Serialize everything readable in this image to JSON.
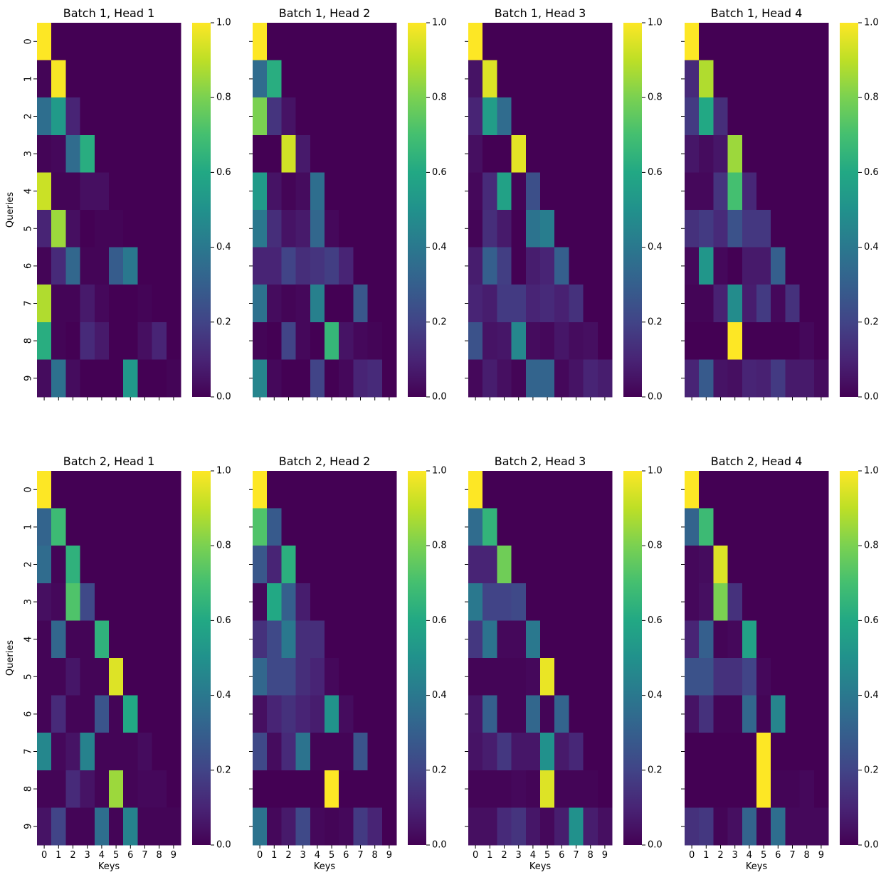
{
  "chart_data": [
    {
      "type": "heatmap",
      "title": "Batch 1, Head 1",
      "xlabel": "",
      "ylabel": "Queries",
      "x_categories": [
        "0",
        "1",
        "2",
        "3",
        "4",
        "5",
        "6",
        "7",
        "8",
        "9"
      ],
      "y_categories": [
        "0",
        "1",
        "2",
        "3",
        "4",
        "5",
        "6",
        "7",
        "8",
        "9"
      ],
      "colormap": "viridis",
      "vmin": 0,
      "vmax": 1,
      "colorbar_ticks": [
        "0.0",
        "0.2",
        "0.4",
        "0.6",
        "0.8",
        "1.0"
      ],
      "values": [
        [
          1.0,
          0,
          0,
          0,
          0,
          0,
          0,
          0,
          0,
          0
        ],
        [
          0.01,
          0.99,
          0,
          0,
          0,
          0,
          0,
          0,
          0,
          0
        ],
        [
          0.36,
          0.54,
          0.1,
          0,
          0,
          0,
          0,
          0,
          0,
          0
        ],
        [
          0.01,
          0.02,
          0.35,
          0.62,
          0,
          0,
          0,
          0,
          0,
          0
        ],
        [
          0.92,
          0.01,
          0.01,
          0.04,
          0.04,
          0,
          0,
          0,
          0,
          0
        ],
        [
          0.1,
          0.85,
          0.04,
          0,
          0.01,
          0.01,
          0,
          0,
          0,
          0
        ],
        [
          0.01,
          0.12,
          0.33,
          0.01,
          0.01,
          0.29,
          0.4,
          0,
          0,
          0
        ],
        [
          0.88,
          0.01,
          0.01,
          0.07,
          0.02,
          0,
          0,
          0.01,
          0,
          0
        ],
        [
          0.62,
          0.01,
          0,
          0.12,
          0.07,
          0,
          0,
          0.04,
          0.1,
          0
        ],
        [
          0.03,
          0.37,
          0.03,
          0,
          0,
          0,
          0.53,
          0,
          0,
          0.01
        ]
      ]
    },
    {
      "type": "heatmap",
      "title": "Batch 1, Head 2",
      "xlabel": "",
      "ylabel": "",
      "x_categories": [
        "0",
        "1",
        "2",
        "3",
        "4",
        "5",
        "6",
        "7",
        "8",
        "9"
      ],
      "y_categories": [
        "0",
        "1",
        "2",
        "3",
        "4",
        "5",
        "6",
        "7",
        "8",
        "9"
      ],
      "colormap": "viridis",
      "vmin": 0,
      "vmax": 1,
      "colorbar_ticks": [
        "0.0",
        "0.2",
        "0.4",
        "0.6",
        "0.8",
        "1.0"
      ],
      "values": [
        [
          1.0,
          0,
          0,
          0,
          0,
          0,
          0,
          0,
          0,
          0
        ],
        [
          0.35,
          0.62,
          0,
          0,
          0,
          0,
          0,
          0,
          0,
          0
        ],
        [
          0.8,
          0.15,
          0.05,
          0,
          0,
          0,
          0,
          0,
          0,
          0
        ],
        [
          0,
          0,
          0.93,
          0.07,
          0,
          0,
          0,
          0,
          0,
          0
        ],
        [
          0.54,
          0.05,
          0.01,
          0.03,
          0.36,
          0,
          0,
          0,
          0,
          0
        ],
        [
          0.4,
          0.13,
          0.05,
          0.07,
          0.33,
          0.02,
          0,
          0,
          0,
          0
        ],
        [
          0.1,
          0.1,
          0.2,
          0.13,
          0.15,
          0.18,
          0.1,
          0,
          0,
          0
        ],
        [
          0.37,
          0.03,
          0.01,
          0.02,
          0.43,
          0,
          0,
          0.27,
          0,
          0
        ],
        [
          0.01,
          0,
          0.2,
          0.02,
          0,
          0.66,
          0.05,
          0.02,
          0.01,
          0
        ],
        [
          0.45,
          0.02,
          0,
          0,
          0.2,
          0,
          0.02,
          0.1,
          0.12,
          0
        ]
      ]
    },
    {
      "type": "heatmap",
      "title": "Batch 1, Head 3",
      "xlabel": "",
      "ylabel": "",
      "x_categories": [
        "0",
        "1",
        "2",
        "3",
        "4",
        "5",
        "6",
        "7",
        "8",
        "9"
      ],
      "y_categories": [
        "0",
        "1",
        "2",
        "3",
        "4",
        "5",
        "6",
        "7",
        "8",
        "9"
      ],
      "colormap": "viridis",
      "vmin": 0,
      "vmax": 1,
      "colorbar_ticks": [
        "0.0",
        "0.2",
        "0.4",
        "0.6",
        "0.8",
        "1.0"
      ],
      "values": [
        [
          1.0,
          0,
          0,
          0,
          0,
          0,
          0,
          0,
          0,
          0
        ],
        [
          0.05,
          0.95,
          0,
          0,
          0,
          0,
          0,
          0,
          0,
          0
        ],
        [
          0.1,
          0.55,
          0.35,
          0,
          0,
          0,
          0,
          0,
          0,
          0
        ],
        [
          0.04,
          0,
          0,
          0.96,
          0,
          0,
          0,
          0,
          0,
          0
        ],
        [
          0.02,
          0.12,
          0.57,
          0.01,
          0.24,
          0,
          0,
          0,
          0,
          0
        ],
        [
          0.01,
          0.13,
          0.07,
          0,
          0.38,
          0.42,
          0,
          0,
          0,
          0
        ],
        [
          0.08,
          0.3,
          0.18,
          0,
          0.08,
          0.1,
          0.3,
          0,
          0,
          0
        ],
        [
          0.1,
          0.08,
          0.17,
          0.17,
          0.1,
          0.12,
          0.09,
          0.14,
          0,
          0
        ],
        [
          0.25,
          0.05,
          0.06,
          0.46,
          0.03,
          0.02,
          0.06,
          0.03,
          0.04,
          0
        ],
        [
          0.02,
          0.08,
          0.04,
          0.01,
          0.32,
          0.32,
          0.02,
          0.05,
          0.1,
          0.08
        ]
      ]
    },
    {
      "type": "heatmap",
      "title": "Batch 1, Head 4",
      "xlabel": "",
      "ylabel": "",
      "x_categories": [
        "0",
        "1",
        "2",
        "3",
        "4",
        "5",
        "6",
        "7",
        "8",
        "9"
      ],
      "y_categories": [
        "0",
        "1",
        "2",
        "3",
        "4",
        "5",
        "6",
        "7",
        "8",
        "9"
      ],
      "colormap": "viridis",
      "vmin": 0,
      "vmax": 1,
      "colorbar_ticks": [
        "0.0",
        "0.2",
        "0.4",
        "0.6",
        "0.8",
        "1.0"
      ],
      "values": [
        [
          1.0,
          0,
          0,
          0,
          0,
          0,
          0,
          0,
          0,
          0
        ],
        [
          0.12,
          0.88,
          0,
          0,
          0,
          0,
          0,
          0,
          0,
          0
        ],
        [
          0.17,
          0.6,
          0.13,
          0,
          0,
          0,
          0,
          0,
          0,
          0
        ],
        [
          0.06,
          0.03,
          0.06,
          0.85,
          0,
          0,
          0,
          0,
          0,
          0
        ],
        [
          0.02,
          0.02,
          0.15,
          0.7,
          0.11,
          0,
          0,
          0,
          0,
          0
        ],
        [
          0.14,
          0.17,
          0.12,
          0.25,
          0.16,
          0.16,
          0,
          0,
          0,
          0
        ],
        [
          0.02,
          0.52,
          0.02,
          0,
          0.07,
          0.07,
          0.3,
          0,
          0,
          0
        ],
        [
          0.01,
          0.01,
          0.09,
          0.48,
          0.08,
          0.17,
          0.02,
          0.14,
          0,
          0
        ],
        [
          0,
          0,
          0,
          1.0,
          0,
          0,
          0,
          0,
          0.02,
          0
        ],
        [
          0.1,
          0.28,
          0.05,
          0.04,
          0.1,
          0.09,
          0.17,
          0.07,
          0.07,
          0.03
        ]
      ]
    },
    {
      "type": "heatmap",
      "title": "Batch 2, Head 1",
      "xlabel": "Keys",
      "ylabel": "Queries",
      "x_categories": [
        "0",
        "1",
        "2",
        "3",
        "4",
        "5",
        "6",
        "7",
        "8",
        "9"
      ],
      "y_categories": [
        "0",
        "1",
        "2",
        "3",
        "4",
        "5",
        "6",
        "7",
        "8",
        "9"
      ],
      "colormap": "viridis",
      "vmin": 0,
      "vmax": 1,
      "colorbar_ticks": [
        "0.0",
        "0.2",
        "0.4",
        "0.6",
        "0.8",
        "1.0"
      ],
      "values": [
        [
          1.0,
          0,
          0,
          0,
          0,
          0,
          0,
          0,
          0,
          0
        ],
        [
          0.32,
          0.68,
          0,
          0,
          0,
          0,
          0,
          0,
          0,
          0
        ],
        [
          0.35,
          0.01,
          0.64,
          0,
          0,
          0,
          0,
          0,
          0,
          0
        ],
        [
          0.04,
          0.02,
          0.72,
          0.22,
          0,
          0,
          0,
          0,
          0,
          0
        ],
        [
          0.01,
          0.33,
          0.01,
          0.01,
          0.64,
          0,
          0,
          0,
          0,
          0
        ],
        [
          0.01,
          0.01,
          0.06,
          0.01,
          0.01,
          0.95,
          0,
          0,
          0,
          0
        ],
        [
          0.01,
          0.12,
          0.01,
          0.01,
          0.26,
          0.01,
          0.6,
          0,
          0,
          0
        ],
        [
          0.46,
          0.02,
          0.05,
          0.44,
          0.01,
          0.01,
          0.01,
          0.03,
          0,
          0
        ],
        [
          0.01,
          0.01,
          0.12,
          0.05,
          0.01,
          0.85,
          0.01,
          0.02,
          0.02,
          0
        ],
        [
          0.05,
          0.2,
          0.01,
          0.01,
          0.36,
          0.01,
          0.44,
          0.01,
          0.01,
          0.01
        ]
      ]
    },
    {
      "type": "heatmap",
      "title": "Batch 2, Head 2",
      "xlabel": "Keys",
      "ylabel": "",
      "x_categories": [
        "0",
        "1",
        "2",
        "3",
        "4",
        "5",
        "6",
        "7",
        "8",
        "9"
      ],
      "y_categories": [
        "0",
        "1",
        "2",
        "3",
        "4",
        "5",
        "6",
        "7",
        "8",
        "9"
      ],
      "colormap": "viridis",
      "vmin": 0,
      "vmax": 1,
      "colorbar_ticks": [
        "0.0",
        "0.2",
        "0.4",
        "0.6",
        "0.8",
        "1.0"
      ],
      "values": [
        [
          1.0,
          0,
          0,
          0,
          0,
          0,
          0,
          0,
          0,
          0
        ],
        [
          0.72,
          0.28,
          0,
          0,
          0,
          0,
          0,
          0,
          0,
          0
        ],
        [
          0.27,
          0.1,
          0.63,
          0,
          0,
          0,
          0,
          0,
          0,
          0
        ],
        [
          0.02,
          0.6,
          0.3,
          0.08,
          0,
          0,
          0,
          0,
          0,
          0
        ],
        [
          0.14,
          0.22,
          0.4,
          0.13,
          0.13,
          0,
          0,
          0,
          0,
          0
        ],
        [
          0.33,
          0.22,
          0.22,
          0.13,
          0.1,
          0.02,
          0,
          0,
          0,
          0
        ],
        [
          0.04,
          0.1,
          0.14,
          0.1,
          0.08,
          0.51,
          0.03,
          0,
          0,
          0
        ],
        [
          0.22,
          0.03,
          0.12,
          0.38,
          0.01,
          0.01,
          0.01,
          0.26,
          0,
          0
        ],
        [
          0,
          0,
          0,
          0,
          0,
          1.0,
          0,
          0,
          0,
          0
        ],
        [
          0.38,
          0.02,
          0.07,
          0.22,
          0.02,
          0.01,
          0.02,
          0.17,
          0.1,
          0
        ]
      ]
    },
    {
      "type": "heatmap",
      "title": "Batch 2, Head 3",
      "xlabel": "Keys",
      "ylabel": "",
      "x_categories": [
        "0",
        "1",
        "2",
        "3",
        "4",
        "5",
        "6",
        "7",
        "8",
        "9"
      ],
      "y_categories": [
        "0",
        "1",
        "2",
        "3",
        "4",
        "5",
        "6",
        "7",
        "8",
        "9"
      ],
      "colormap": "viridis",
      "vmin": 0,
      "vmax": 1,
      "colorbar_ticks": [
        "0.0",
        "0.2",
        "0.4",
        "0.6",
        "0.8",
        "1.0"
      ],
      "values": [
        [
          1.0,
          0,
          0,
          0,
          0,
          0,
          0,
          0,
          0,
          0
        ],
        [
          0.35,
          0.65,
          0,
          0,
          0,
          0,
          0,
          0,
          0,
          0
        ],
        [
          0.1,
          0.1,
          0.78,
          0,
          0,
          0,
          0,
          0,
          0,
          0
        ],
        [
          0.4,
          0.2,
          0.2,
          0.22,
          0,
          0,
          0,
          0,
          0,
          0
        ],
        [
          0.16,
          0.38,
          0.02,
          0.02,
          0.4,
          0,
          0,
          0,
          0,
          0
        ],
        [
          0.01,
          0.01,
          0.01,
          0.01,
          0.02,
          0.97,
          0,
          0,
          0,
          0
        ],
        [
          0.06,
          0.3,
          0.01,
          0.01,
          0.33,
          0.01,
          0.32,
          0,
          0,
          0
        ],
        [
          0.05,
          0.08,
          0.16,
          0.06,
          0.06,
          0.5,
          0.07,
          0.11,
          0,
          0
        ],
        [
          0.01,
          0.01,
          0.01,
          0.02,
          0.01,
          0.95,
          0.01,
          0.01,
          0.01,
          0
        ],
        [
          0.04,
          0.04,
          0.12,
          0.15,
          0.06,
          0.02,
          0.08,
          0.5,
          0.08,
          0.04
        ]
      ]
    },
    {
      "type": "heatmap",
      "title": "Batch 2, Head 4",
      "xlabel": "Keys",
      "ylabel": "",
      "x_categories": [
        "0",
        "1",
        "2",
        "3",
        "4",
        "5",
        "6",
        "7",
        "8",
        "9"
      ],
      "y_categories": [
        "0",
        "1",
        "2",
        "3",
        "4",
        "5",
        "6",
        "7",
        "8",
        "9"
      ],
      "colormap": "viridis",
      "vmin": 0,
      "vmax": 1,
      "colorbar_ticks": [
        "0.0",
        "0.2",
        "0.4",
        "0.6",
        "0.8",
        "1.0"
      ],
      "values": [
        [
          1.0,
          0,
          0,
          0,
          0,
          0,
          0,
          0,
          0,
          0
        ],
        [
          0.32,
          0.68,
          0,
          0,
          0,
          0,
          0,
          0,
          0,
          0
        ],
        [
          0.02,
          0.03,
          0.95,
          0,
          0,
          0,
          0,
          0,
          0,
          0
        ],
        [
          0.02,
          0.04,
          0.8,
          0.14,
          0,
          0,
          0,
          0,
          0,
          0
        ],
        [
          0.1,
          0.3,
          0.01,
          0.02,
          0.57,
          0,
          0,
          0,
          0,
          0
        ],
        [
          0.25,
          0.25,
          0.14,
          0.14,
          0.2,
          0.02,
          0,
          0,
          0,
          0
        ],
        [
          0.05,
          0.14,
          0.01,
          0.01,
          0.33,
          0.01,
          0.45,
          0,
          0,
          0
        ],
        [
          0,
          0,
          0,
          0,
          0,
          1.0,
          0,
          0,
          0,
          0
        ],
        [
          0,
          0,
          0,
          0,
          0,
          1.0,
          0.01,
          0.01,
          0.02,
          0
        ],
        [
          0.14,
          0.16,
          0.01,
          0.04,
          0.32,
          0.01,
          0.36,
          0.02,
          0.02,
          0.02
        ]
      ]
    }
  ]
}
